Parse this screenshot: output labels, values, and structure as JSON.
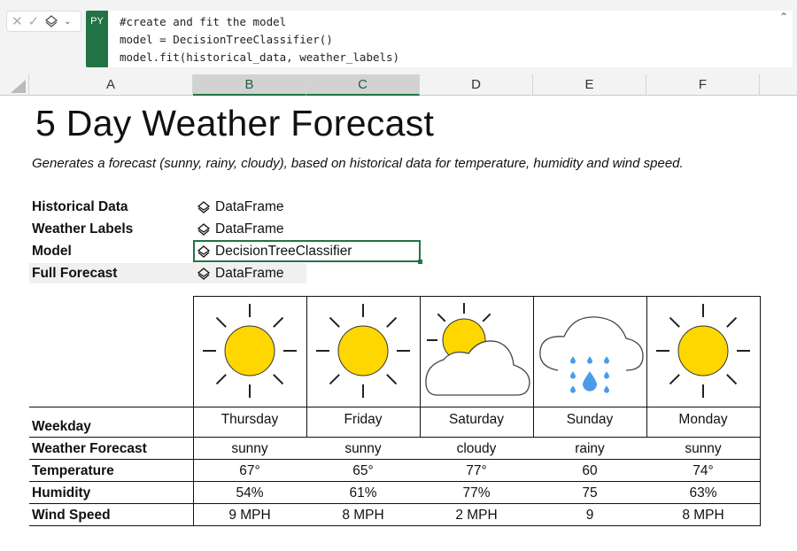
{
  "formula_bar": {
    "badge": "PY",
    "code": "#create and fit the model\nmodel = DecisionTreeClassifier()\nmodel.fit(historical_data, weather_labels)",
    "cancel_icon": "x-icon",
    "confirm_icon": "check-icon",
    "type_icon": "stack-icon"
  },
  "columns": [
    "A",
    "B",
    "C",
    "D",
    "E",
    "F"
  ],
  "selected_columns": [
    "B",
    "C"
  ],
  "title": "5 Day Weather Forecast",
  "subtitle": "Generates a forecast (sunny, rainy, cloudy), based on historical data for temperature, humidity and wind speed.",
  "objects": [
    {
      "label": "Historical Data",
      "value": "DataFrame"
    },
    {
      "label": "Weather Labels",
      "value": "DataFrame"
    },
    {
      "label": "Model",
      "value": "DecisionTreeClassifier"
    },
    {
      "label": "Full Forecast",
      "value": "DataFrame"
    }
  ],
  "forecast": {
    "row_labels": [
      "Weekday",
      "Weather Forecast",
      "Temperature",
      "Humidity",
      "Wind Speed"
    ],
    "days": [
      {
        "icon": "sunny",
        "weekday": "Thursday",
        "forecast": "sunny",
        "temperature": "67°",
        "humidity": "54%",
        "wind": "9 MPH"
      },
      {
        "icon": "sunny",
        "weekday": "Friday",
        "forecast": "sunny",
        "temperature": "65°",
        "humidity": "61%",
        "wind": "8 MPH"
      },
      {
        "icon": "cloudy",
        "weekday": "Saturday",
        "forecast": "cloudy",
        "temperature": "77°",
        "humidity": "77%",
        "wind": "2 MPH"
      },
      {
        "icon": "rainy",
        "weekday": "Sunday",
        "forecast": "rainy",
        "temperature": "60",
        "humidity": "75",
        "wind": "9"
      },
      {
        "icon": "sunny",
        "weekday": "Monday",
        "forecast": "sunny",
        "temperature": "74°",
        "humidity": "63%",
        "wind": "8 MPH"
      }
    ]
  },
  "colors": {
    "accent": "#217346",
    "sun": "#FFD700",
    "rain": "#4C9BE8"
  }
}
